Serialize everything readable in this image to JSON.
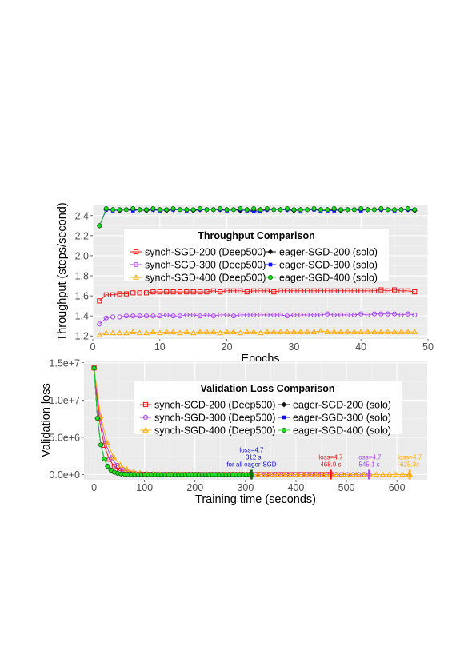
{
  "chart_data": [
    {
      "type": "line",
      "title": "Throughput Comparison",
      "xlabel": "Epochs",
      "ylabel": "Throughput (steps/second)",
      "xlim": [
        0,
        50
      ],
      "ylim": [
        1.17,
        2.51
      ],
      "xticks": [
        0,
        10,
        20,
        30,
        40,
        50
      ],
      "yticks": [
        1.2,
        1.4,
        1.6,
        1.8,
        2.0,
        2.2,
        2.4
      ],
      "grid": true,
      "legend_position": "center-top",
      "series": [
        {
          "name": "synch-SGD-200 (Deep500)",
          "color": "#ee1111",
          "marker": "square-open",
          "values": [
            1.55,
            1.61,
            1.61,
            1.62,
            1.62,
            1.63,
            1.63,
            1.63,
            1.64,
            1.64,
            1.64,
            1.64,
            1.64,
            1.64,
            1.64,
            1.64,
            1.64,
            1.65,
            1.64,
            1.65,
            1.65,
            1.65,
            1.64,
            1.65,
            1.65,
            1.65,
            1.64,
            1.65,
            1.65,
            1.65,
            1.65,
            1.65,
            1.65,
            1.65,
            1.65,
            1.65,
            1.65,
            1.65,
            1.65,
            1.65,
            1.65,
            1.65,
            1.66,
            1.65,
            1.66,
            1.65,
            1.65,
            1.64
          ]
        },
        {
          "name": "synch-SGD-300 (Deep500)",
          "color": "#aa44ee",
          "marker": "circle-open",
          "values": [
            1.32,
            1.38,
            1.39,
            1.39,
            1.4,
            1.4,
            1.4,
            1.4,
            1.4,
            1.4,
            1.41,
            1.4,
            1.4,
            1.41,
            1.41,
            1.4,
            1.41,
            1.4,
            1.41,
            1.41,
            1.4,
            1.41,
            1.41,
            1.41,
            1.41,
            1.41,
            1.41,
            1.41,
            1.4,
            1.41,
            1.41,
            1.41,
            1.41,
            1.41,
            1.42,
            1.41,
            1.41,
            1.41,
            1.41,
            1.42,
            1.41,
            1.42,
            1.42,
            1.42,
            1.42,
            1.41,
            1.42,
            1.41
          ]
        },
        {
          "name": "synch-SGD-400 (Deep500)",
          "color": "#ffaa00",
          "marker": "triangle-open",
          "values": [
            1.21,
            1.23,
            1.23,
            1.23,
            1.23,
            1.24,
            1.23,
            1.23,
            1.24,
            1.23,
            1.24,
            1.24,
            1.23,
            1.24,
            1.23,
            1.24,
            1.24,
            1.24,
            1.23,
            1.24,
            1.24,
            1.23,
            1.24,
            1.24,
            1.23,
            1.24,
            1.24,
            1.24,
            1.24,
            1.24,
            1.24,
            1.24,
            1.24,
            1.25,
            1.24,
            1.24,
            1.24,
            1.24,
            1.24,
            1.24,
            1.24,
            1.24,
            1.24,
            1.24,
            1.24,
            1.24,
            1.24,
            1.24
          ]
        },
        {
          "name": "eager-SGD-200 (solo)",
          "color": "#111111",
          "marker": "diamond",
          "values": [
            2.3,
            2.46,
            2.46,
            2.45,
            2.46,
            2.46,
            2.46,
            2.45,
            2.46,
            2.46,
            2.45,
            2.46,
            2.46,
            2.46,
            2.45,
            2.46,
            2.46,
            2.46,
            2.46,
            2.46,
            2.46,
            2.45,
            2.46,
            2.45,
            2.46,
            2.46,
            2.46,
            2.46,
            2.46,
            2.45,
            2.46,
            2.46,
            2.46,
            2.46,
            2.46,
            2.46,
            2.45,
            2.46,
            2.46,
            2.46,
            2.46,
            2.46,
            2.46,
            2.46,
            2.46,
            2.46,
            2.46,
            2.45
          ]
        },
        {
          "name": "eager-SGD-300 (solo)",
          "color": "#1111ee",
          "marker": "square",
          "values": [
            2.3,
            2.46,
            2.45,
            2.46,
            2.46,
            2.45,
            2.46,
            2.46,
            2.46,
            2.45,
            2.46,
            2.46,
            2.46,
            2.45,
            2.46,
            2.46,
            2.46,
            2.46,
            2.46,
            2.45,
            2.46,
            2.46,
            2.45,
            2.44,
            2.44,
            2.46,
            2.46,
            2.46,
            2.46,
            2.46,
            2.45,
            2.46,
            2.46,
            2.45,
            2.45,
            2.45,
            2.46,
            2.46,
            2.46,
            2.45,
            2.46,
            2.46,
            2.46,
            2.46,
            2.45,
            2.46,
            2.46,
            2.46
          ]
        },
        {
          "name": "eager-SGD-400 (solo)",
          "color": "#22dd22",
          "marker": "circle",
          "values": [
            2.3,
            2.47,
            2.46,
            2.46,
            2.46,
            2.47,
            2.46,
            2.46,
            2.47,
            2.46,
            2.46,
            2.47,
            2.46,
            2.46,
            2.46,
            2.47,
            2.46,
            2.46,
            2.47,
            2.46,
            2.46,
            2.47,
            2.46,
            2.47,
            2.46,
            2.47,
            2.46,
            2.46,
            2.47,
            2.46,
            2.46,
            2.46,
            2.47,
            2.46,
            2.46,
            2.47,
            2.46,
            2.46,
            2.46,
            2.47,
            2.46,
            2.46,
            2.47,
            2.46,
            2.46,
            2.46,
            2.47,
            2.46
          ]
        }
      ]
    },
    {
      "type": "line",
      "title": "Validation Loss Comparison",
      "xlabel": "Training time (seconds)",
      "ylabel": "Validation loss",
      "xlim": [
        -20,
        660
      ],
      "ylim": [
        -700000,
        15300000
      ],
      "xticks": [
        0,
        100,
        200,
        300,
        400,
        500,
        600
      ],
      "yticks": [
        0,
        5000000,
        10000000,
        15000000
      ],
      "ytick_labels": [
        "0.0e+0",
        "5.0e+6",
        "1.0e+7",
        "1.5e+7"
      ],
      "grid": true,
      "legend_position": "top-right",
      "start_loss": 14300000,
      "final_loss": 4.7,
      "series": [
        {
          "name": "synch-SGD-200 (Deep500)",
          "color": "#ee1111",
          "marker": "square-open",
          "decay_s": 15.5,
          "end_s": 468.9,
          "step_s": 10
        },
        {
          "name": "synch-SGD-300 (Deep500)",
          "color": "#aa44ee",
          "marker": "circle-open",
          "decay_s": 18.5,
          "end_s": 545.1,
          "step_s": 11.4
        },
        {
          "name": "synch-SGD-400 (Deep500)",
          "color": "#ffaa00",
          "marker": "triangle-open",
          "decay_s": 21.5,
          "end_s": 625.3,
          "step_s": 13
        },
        {
          "name": "eager-SGD-200 (solo)",
          "color": "#111111",
          "marker": "diamond",
          "decay_s": 10.5,
          "end_s": 312,
          "step_s": 6.7
        },
        {
          "name": "eager-SGD-300 (solo)",
          "color": "#1111ee",
          "marker": "square",
          "decay_s": 10.5,
          "end_s": 312,
          "step_s": 6.7
        },
        {
          "name": "eager-SGD-400 (solo)",
          "color": "#22dd22",
          "marker": "circle",
          "decay_s": 10.5,
          "end_s": 312,
          "step_s": 6.7
        }
      ],
      "annotations": [
        {
          "lines": [
            "loss=4.7",
            "~312 s",
            "for all eager-SGD"
          ],
          "x": 312,
          "color": "#1111cc",
          "marker_color": "#006400"
        },
        {
          "lines": [
            "loss=4.7",
            "468.9 s"
          ],
          "x": 468.9,
          "color": "#ee1111",
          "marker_color": "#ee1111"
        },
        {
          "lines": [
            "loss=4.7",
            "545.1 s"
          ],
          "x": 545.1,
          "color": "#aa44ee",
          "marker_color": "#aa44ee"
        },
        {
          "lines": [
            "loss=4.7",
            "625.3s"
          ],
          "x": 625.3,
          "color": "#ffaa00",
          "marker_color": "#ffaa00"
        }
      ]
    }
  ]
}
